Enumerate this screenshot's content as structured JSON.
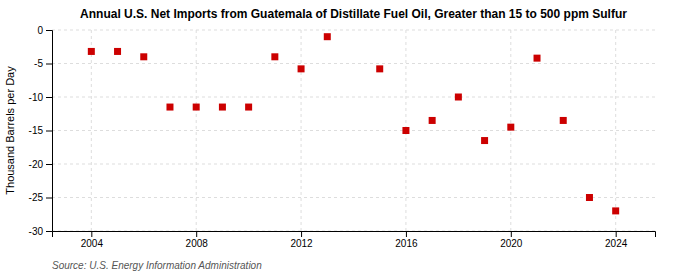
{
  "chart_data": {
    "type": "scatter",
    "title": "Annual U.S. Net Imports from Guatemala of Distillate Fuel Oil, Greater than 15 to 500 ppm Sulfur",
    "ylabel": "Thousand Barrels per Day",
    "source": "Source: U.S. Energy Information Administration",
    "x": [
      2004,
      2005,
      2006,
      2007,
      2008,
      2009,
      2010,
      2011,
      2012,
      2013,
      2015,
      2016,
      2017,
      2018,
      2019,
      2020,
      2021,
      2022,
      2023,
      2024
    ],
    "values": [
      -3.2,
      -3.2,
      -4.0,
      -11.5,
      -11.5,
      -11.5,
      -11.5,
      -4.0,
      -5.8,
      -1.0,
      -5.8,
      -15.0,
      -13.5,
      -10.0,
      -16.5,
      -14.5,
      -4.2,
      -13.5,
      -25.0,
      -27.0
    ],
    "color": "#cc0000",
    "marker": "square",
    "xlim": [
      2002.5,
      2025.5
    ],
    "xticks": [
      2004,
      2008,
      2012,
      2016,
      2020,
      2024
    ],
    "ylim": [
      -30,
      0
    ],
    "yticks": [
      0,
      -5,
      -10,
      -15,
      -20,
      -25,
      -30
    ],
    "grid": true
  }
}
